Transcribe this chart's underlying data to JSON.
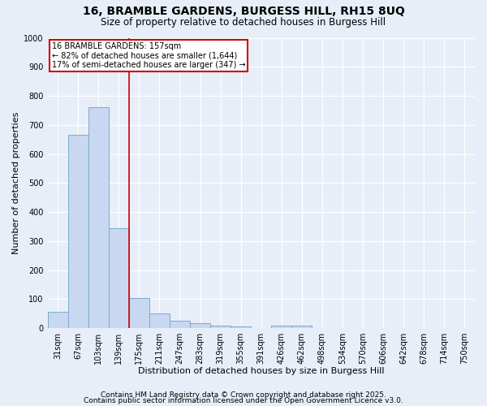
{
  "title": "16, BRAMBLE GARDENS, BURGESS HILL, RH15 8UQ",
  "subtitle": "Size of property relative to detached houses in Burgess Hill",
  "xlabel": "Distribution of detached houses by size in Burgess Hill",
  "ylabel": "Number of detached properties",
  "bar_labels": [
    "31sqm",
    "67sqm",
    "103sqm",
    "139sqm",
    "175sqm",
    "211sqm",
    "247sqm",
    "283sqm",
    "319sqm",
    "355sqm",
    "391sqm",
    "426sqm",
    "462sqm",
    "498sqm",
    "534sqm",
    "570sqm",
    "606sqm",
    "642sqm",
    "678sqm",
    "714sqm",
    "750sqm"
  ],
  "bar_values": [
    55,
    665,
    760,
    345,
    105,
    50,
    25,
    18,
    10,
    5,
    0,
    8,
    8,
    0,
    0,
    0,
    0,
    0,
    0,
    0,
    0
  ],
  "bar_color": "#c8d8f0",
  "bar_edgecolor": "#7aaad0",
  "background_color": "#e8eef8",
  "grid_color": "#ffffff",
  "ylim": [
    0,
    1000
  ],
  "yticks": [
    0,
    100,
    200,
    300,
    400,
    500,
    600,
    700,
    800,
    900,
    1000
  ],
  "red_line_index": 3.5,
  "annotation_text": "16 BRAMBLE GARDENS: 157sqm\n← 82% of detached houses are smaller (1,644)\n17% of semi-detached houses are larger (347) →",
  "annotation_box_color": "#ffffff",
  "annotation_border_color": "#cc0000",
  "footer_line1": "Contains HM Land Registry data © Crown copyright and database right 2025.",
  "footer_line2": "Contains public sector information licensed under the Open Government Licence v3.0.",
  "title_fontsize": 10,
  "subtitle_fontsize": 8.5,
  "axis_label_fontsize": 8,
  "tick_fontsize": 7,
  "annotation_fontsize": 7,
  "footer_fontsize": 6.5
}
